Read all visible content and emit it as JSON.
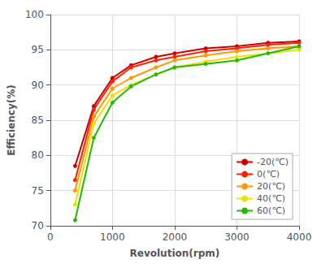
{
  "chart_data": {
    "type": "line",
    "xlabel": "Revolution(rpm)",
    "ylabel": "Efficiency(%)",
    "x": [
      400,
      700,
      1000,
      1300,
      1700,
      2000,
      2500,
      3000,
      3500,
      4000
    ],
    "series": [
      {
        "name": "-20(℃)",
        "color": "#cc0000",
        "values": [
          78.5,
          87.0,
          91.0,
          92.8,
          94.0,
          94.5,
          95.2,
          95.5,
          96.0,
          96.2
        ]
      },
      {
        "name": "0(℃)",
        "color": "#ff2200",
        "values": [
          76.5,
          86.5,
          90.5,
          92.5,
          93.5,
          94.0,
          94.8,
          95.2,
          95.7,
          96.0
        ]
      },
      {
        "name": "20(℃)",
        "color": "#ff9900",
        "values": [
          75.0,
          85.5,
          89.5,
          91.0,
          92.5,
          93.5,
          94.2,
          94.8,
          95.2,
          95.5
        ]
      },
      {
        "name": "40(℃)",
        "color": "#f0e000",
        "values": [
          73.0,
          84.5,
          88.5,
          90.0,
          91.5,
          92.5,
          93.3,
          94.0,
          94.5,
          95.0
        ]
      },
      {
        "name": "60(℃)",
        "color": "#22bb00",
        "values": [
          70.8,
          82.5,
          87.5,
          89.8,
          91.5,
          92.5,
          93.0,
          93.5,
          94.5,
          95.5
        ]
      }
    ],
    "xlim": [
      0,
      4000
    ],
    "ylim": [
      70,
      100
    ],
    "xticks": [
      0,
      1000,
      2000,
      3000,
      4000
    ],
    "yticks": [
      70,
      75,
      80,
      85,
      90,
      95,
      100
    ],
    "grid": true,
    "legend": "lower right",
    "marker": "circle"
  }
}
